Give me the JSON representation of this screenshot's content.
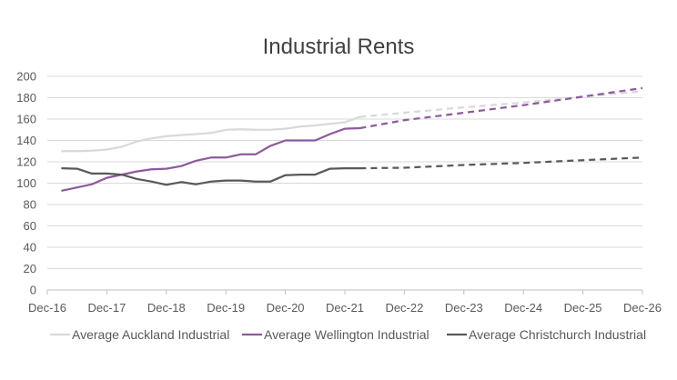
{
  "chart_data": {
    "type": "line",
    "title": "Industrial Rents",
    "xlabel": "",
    "ylabel": "",
    "ylim": [
      0,
      200
    ],
    "yticks": [
      0,
      20,
      40,
      60,
      80,
      100,
      120,
      140,
      160,
      180,
      200
    ],
    "xticks": [
      "Dec-16",
      "Dec-17",
      "Dec-18",
      "Dec-19",
      "Dec-20",
      "Dec-21",
      "Dec-22",
      "Dec-23",
      "Dec-24",
      "Dec-25",
      "Dec-26"
    ],
    "x_unit": "quarters since Dec-16",
    "grid": true,
    "legend_position": "bottom",
    "series": [
      {
        "name": "Average Auckland Industrial",
        "color": "#d9d9d9",
        "actual": [
          [
            1,
            130
          ],
          [
            2,
            130
          ],
          [
            3,
            130.5
          ],
          [
            4,
            131.5
          ],
          [
            5,
            134
          ],
          [
            6,
            139
          ],
          [
            7,
            142
          ],
          [
            8,
            144
          ],
          [
            9,
            145
          ],
          [
            10,
            146
          ],
          [
            11,
            147
          ],
          [
            12,
            150
          ],
          [
            13,
            150.5
          ],
          [
            14,
            150
          ],
          [
            15,
            150
          ],
          [
            16,
            151
          ],
          [
            17,
            153
          ],
          [
            18,
            154
          ],
          [
            19,
            155.5
          ],
          [
            20,
            157
          ],
          [
            21,
            162
          ]
        ],
        "forecast": [
          [
            21,
            162
          ],
          [
            24,
            166
          ],
          [
            28,
            171
          ],
          [
            32,
            175.5
          ],
          [
            36,
            181
          ],
          [
            40,
            186
          ]
        ]
      },
      {
        "name": "Average Wellington Industrial",
        "color": "#8e5a9e",
        "actual": [
          [
            1,
            93
          ],
          [
            2,
            96
          ],
          [
            3,
            99
          ],
          [
            4,
            105
          ],
          [
            5,
            108
          ],
          [
            6,
            111
          ],
          [
            7,
            113
          ],
          [
            8,
            113.5
          ],
          [
            9,
            116
          ],
          [
            10,
            121
          ],
          [
            11,
            124
          ],
          [
            12,
            124
          ],
          [
            13,
            127
          ],
          [
            14,
            127
          ],
          [
            15,
            135
          ],
          [
            16,
            140
          ],
          [
            17,
            140
          ],
          [
            18,
            140
          ],
          [
            19,
            146
          ],
          [
            20,
            151
          ],
          [
            21,
            151.5
          ]
        ],
        "forecast": [
          [
            21,
            151.5
          ],
          [
            24,
            159
          ],
          [
            28,
            166
          ],
          [
            32,
            173
          ],
          [
            36,
            181
          ],
          [
            40,
            189
          ]
        ]
      },
      {
        "name": "Average Christchurch Industrial",
        "color": "#595959",
        "actual": [
          [
            1,
            114
          ],
          [
            2,
            113.5
          ],
          [
            3,
            109
          ],
          [
            4,
            109
          ],
          [
            5,
            108
          ],
          [
            6,
            104
          ],
          [
            7,
            101.5
          ],
          [
            8,
            98.5
          ],
          [
            9,
            101
          ],
          [
            10,
            99
          ],
          [
            11,
            101.5
          ],
          [
            12,
            102.5
          ],
          [
            13,
            102.5
          ],
          [
            14,
            101.5
          ],
          [
            15,
            101.5
          ],
          [
            16,
            107.5
          ],
          [
            17,
            108
          ],
          [
            18,
            108
          ],
          [
            19,
            113.5
          ],
          [
            20,
            114
          ],
          [
            21,
            114
          ]
        ],
        "forecast": [
          [
            21,
            114
          ],
          [
            24,
            114.5
          ],
          [
            28,
            117
          ],
          [
            32,
            119
          ],
          [
            36,
            121.5
          ],
          [
            40,
            124
          ]
        ]
      }
    ]
  }
}
